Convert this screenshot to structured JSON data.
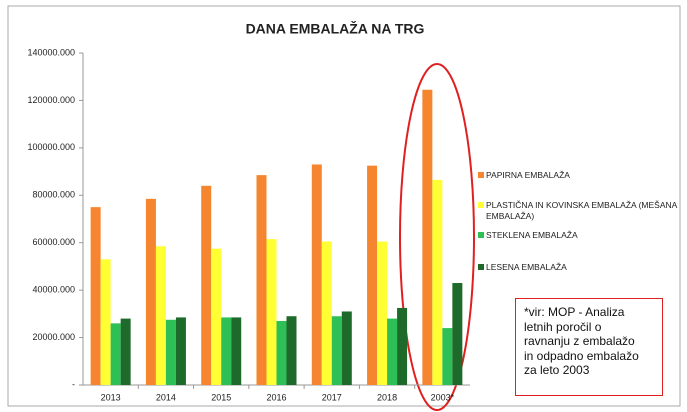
{
  "chart_data": {
    "type": "bar",
    "title": "DANA EMBALAŽA NA TRG",
    "categories": [
      "2013",
      "2014",
      "2015",
      "2016",
      "2017",
      "2018",
      "2003*"
    ],
    "series": [
      {
        "name": "PAPIRNA EMBALAŽA",
        "color": "#f5862f",
        "values": [
          75000,
          78500,
          84000,
          88500,
          93000,
          92500,
          124500
        ]
      },
      {
        "name": "PLASTIČNA IN KOVINSKA EMBALAŽA (MEŠANA EMBALAŽA)",
        "color": "#ffff33",
        "values": [
          53000,
          58500,
          57500,
          61500,
          60500,
          60500,
          86500
        ]
      },
      {
        "name": "STEKLENA EMBALAŽA",
        "color": "#2fbf57",
        "values": [
          26000,
          27500,
          28500,
          27000,
          29000,
          28000,
          24000
        ]
      },
      {
        "name": "LESENA EMBALAŽA",
        "color": "#1d6a2a",
        "values": [
          28000,
          28500,
          28500,
          29000,
          31000,
          32500,
          43000
        ]
      }
    ],
    "ylim": [
      0,
      140000
    ],
    "yticks": [
      {
        "value": 0,
        "label": "-"
      },
      {
        "value": 20000,
        "label": "20000.000"
      },
      {
        "value": 40000,
        "label": "40000.000"
      },
      {
        "value": 60000,
        "label": "60000.000"
      },
      {
        "value": 80000,
        "label": "80000.000"
      },
      {
        "value": 100000,
        "label": "100000.000"
      },
      {
        "value": 120000,
        "label": "120000.000"
      },
      {
        "value": 140000,
        "label": "140000.000"
      }
    ],
    "grid": false,
    "annotation": [
      "*vir: MOP - Analiza",
      "letnih poročil o",
      "ravnanju z embalažo",
      "in odpadno embalažo",
      "za leto 2003"
    ]
  }
}
